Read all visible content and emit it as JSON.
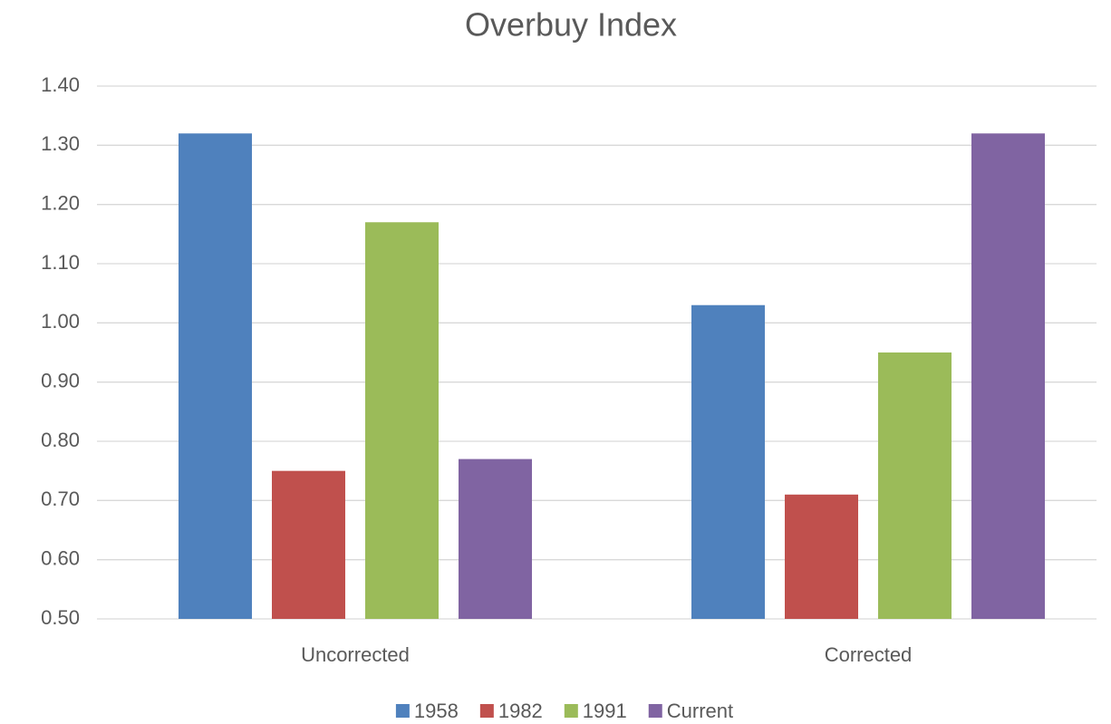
{
  "chart_data": {
    "type": "bar",
    "title": "Overbuy Index",
    "categories": [
      "Uncorrected",
      "Corrected"
    ],
    "series": [
      {
        "name": "1958",
        "color": "#4f81bd",
        "values": [
          1.32,
          1.03
        ]
      },
      {
        "name": "1982",
        "color": "#c0504d",
        "values": [
          0.75,
          0.71
        ]
      },
      {
        "name": "1991",
        "color": "#9bbb59",
        "values": [
          1.17,
          0.95
        ]
      },
      {
        "name": "Current",
        "color": "#8064a2",
        "values": [
          0.77,
          1.32
        ]
      }
    ],
    "ylim": [
      0.5,
      1.4
    ],
    "yticks": [
      {
        "value": 0.5,
        "label": "0.50"
      },
      {
        "value": 0.6,
        "label": "0.60"
      },
      {
        "value": 0.7,
        "label": "0.70"
      },
      {
        "value": 0.8,
        "label": "0.80"
      },
      {
        "value": 0.9,
        "label": "0.90"
      },
      {
        "value": 1.0,
        "label": "1.00"
      },
      {
        "value": 1.1,
        "label": "1.10"
      },
      {
        "value": 1.2,
        "label": "1.20"
      },
      {
        "value": 1.3,
        "label": "1.30"
      },
      {
        "value": 1.4,
        "label": "1.40"
      }
    ],
    "grid": true,
    "legend": "bottom"
  }
}
